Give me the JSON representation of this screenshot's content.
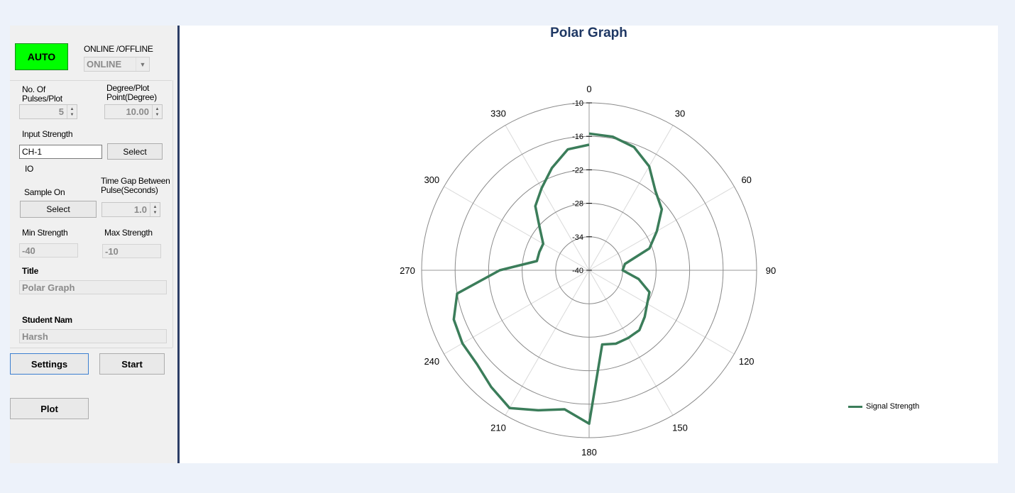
{
  "panel": {
    "auto_button": "AUTO",
    "online_label": "ONLINE /OFFLINE",
    "online_value": "ONLINE",
    "pulses_label_1": "No. Of",
    "pulses_label_2": "Pulses/Plot",
    "pulses_value": "5",
    "degree_label_1": "Degree/Plot",
    "degree_label_2": "Point(Degree)",
    "degree_value": "10.00",
    "input_strength_label": "Input Strength",
    "input_value": "CH-1",
    "select_button_1": "Select",
    "io_label": "IO",
    "sample_on_label": "Sample On",
    "timegap_label_1": "Time Gap Between",
    "timegap_label_2": "Pulse(Seconds)",
    "select_button_2": "Select",
    "timegap_value": "1.0",
    "min_strength_label": "Min Strength",
    "max_strength_label": "Max Strength",
    "min_strength_value": "-40",
    "max_strength_value": "-10",
    "title_label": "Title",
    "title_value": "Polar Graph",
    "student_label": "Student Nam",
    "student_value": "Harsh",
    "settings_button": "Settings",
    "start_button": "Start",
    "plot_button": "Plot"
  },
  "chart_data": {
    "type": "line",
    "polar": true,
    "title": "Polar Graph",
    "angle_labels": [
      "0",
      "30",
      "60",
      "90",
      "120",
      "150",
      "180",
      "210",
      "240",
      "270",
      "300",
      "330"
    ],
    "radial_ticks": [
      "-10",
      "-16",
      "-22",
      "-28",
      "-34",
      "-40"
    ],
    "rlim": [
      -40,
      -10
    ],
    "grid": true,
    "legend_position": "right",
    "series": [
      {
        "name": "Signal Strength",
        "color": "#3b7d5a",
        "theta": [
          0,
          10,
          20,
          30,
          40,
          50,
          60,
          70,
          80,
          90,
          100,
          110,
          120,
          130,
          140,
          150,
          160,
          170,
          180,
          190,
          200,
          210,
          220,
          230,
          240,
          250,
          260,
          270,
          280,
          290,
          300,
          310,
          320,
          330,
          340,
          350,
          360
        ],
        "r": [
          -15.5,
          -15.7,
          -16.5,
          -18.5,
          -21.5,
          -23,
          -26,
          -28.5,
          -33.5,
          -34,
          -31,
          -28.5,
          -28,
          -27,
          -26,
          -26,
          -26,
          -26.5,
          -12.5,
          -14.7,
          -13.3,
          -11.5,
          -12.7,
          -13.8,
          -13.8,
          -14.2,
          -16,
          -24,
          -30.5,
          -30.5,
          -30.5,
          -28.5,
          -25,
          -23,
          -20.5,
          -18,
          -17.5
        ]
      }
    ]
  }
}
